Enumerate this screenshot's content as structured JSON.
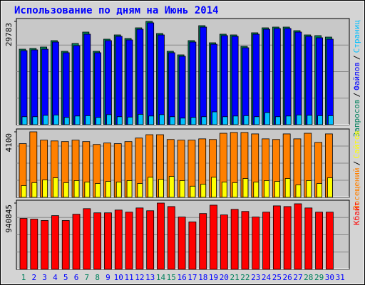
{
  "chart_data": [
    {
      "type": "bar",
      "title": "Использование по дням на Июнь 2014",
      "categories": [
        "1",
        "2",
        "3",
        "4",
        "5",
        "6",
        "7",
        "8",
        "9",
        "10",
        "11",
        "12",
        "13",
        "14",
        "15",
        "16",
        "17",
        "18",
        "19",
        "20",
        "21",
        "22",
        "23",
        "24",
        "25",
        "26",
        "27",
        "28",
        "29",
        "30",
        "31"
      ],
      "category_colors": [
        "#00805c",
        "#0000ff",
        "#0000ff",
        "#0000ff",
        "#0000ff",
        "#0000ff",
        "#00805c",
        "#00805c",
        "#0000ff",
        "#0000ff",
        "#0000ff",
        "#0000ff",
        "#0000ff",
        "#00805c",
        "#00805c",
        "#0000ff",
        "#0000ff",
        "#0000ff",
        "#0000ff",
        "#0000ff",
        "#00805c",
        "#00805c",
        "#0000ff",
        "#0000ff",
        "#0000ff",
        "#0000ff",
        "#0000ff",
        "#00805c",
        "#00805c",
        "#0000ff",
        "#0000ff"
      ],
      "legend_separator": "/",
      "ylim": [
        0,
        29783
      ],
      "yticks": [
        29783
      ],
      "series": [
        {
          "name": "Запросов",
          "color": "#00805c",
          "values": [
            21770,
            21980,
            22390,
            24240,
            21160,
            23420,
            26700,
            21160,
            24650,
            25880,
            24850,
            27930,
            29783,
            26290,
            21160,
            20130,
            24240,
            28550,
            23620,
            26090,
            25880,
            22590,
            26500,
            27930,
            28140,
            28140,
            27110,
            25880,
            25680,
            25260,
            null
          ]
        },
        {
          "name": "Файлов",
          "color": "#0000ff",
          "values": [
            21360,
            21570,
            21770,
            23830,
            20750,
            22800,
            26090,
            20750,
            24240,
            25470,
            24440,
            27520,
            29370,
            25880,
            20750,
            19720,
            23830,
            28140,
            23210,
            25680,
            25470,
            22180,
            26090,
            27520,
            27730,
            27730,
            26700,
            25470,
            25060,
            24650,
            null
          ]
        },
        {
          "name": "Страниц",
          "color": "#00c0ff",
          "values": [
            2300,
            2300,
            2700,
            2800,
            2100,
            2500,
            2600,
            2100,
            2900,
            2300,
            2200,
            3000,
            2500,
            2900,
            2300,
            1900,
            2100,
            2300,
            3700,
            2300,
            2500,
            2600,
            2300,
            3500,
            2300,
            2500,
            2800,
            2700,
            2600,
            2600,
            null
          ]
        }
      ]
    },
    {
      "type": "bar",
      "ylim": [
        0,
        4100
      ],
      "yticks": [
        4100
      ],
      "legend_separator": "/",
      "series": [
        {
          "name": "Посещений",
          "color": "#ff8000",
          "values": [
            3360,
            4100,
            3580,
            3530,
            3490,
            3580,
            3490,
            3310,
            3400,
            3360,
            3490,
            3710,
            3920,
            3920,
            3620,
            3580,
            3580,
            3660,
            3620,
            4010,
            4060,
            4060,
            3970,
            3660,
            3620,
            3970,
            3660,
            4010,
            3440,
            3970,
            null
          ]
        },
        {
          "name": "Сайтов",
          "color": "#ffff00",
          "values": [
            740,
            920,
            1090,
            1220,
            920,
            1050,
            960,
            870,
            1000,
            960,
            1050,
            870,
            1260,
            1130,
            1310,
            1050,
            700,
            830,
            1260,
            960,
            920,
            1180,
            960,
            1050,
            1000,
            1180,
            780,
            1050,
            870,
            1220,
            null
          ]
        }
      ]
    },
    {
      "type": "bar",
      "ylim": [
        0,
        940845
      ],
      "yticks": [
        940845
      ],
      "series": [
        {
          "name": "Кбайт",
          "color": "#ff0000",
          "values": [
            722900,
            713000,
            693200,
            762500,
            693200,
            782300,
            861600,
            802100,
            802100,
            841800,
            812000,
            871500,
            831900,
            940845,
            891300,
            742700,
            673400,
            792200,
            911100,
            772400,
            851700,
            822000,
            742700,
            812000,
            901200,
            891300,
            930900,
            871500,
            812000,
            812000,
            null
          ]
        }
      ]
    }
  ]
}
